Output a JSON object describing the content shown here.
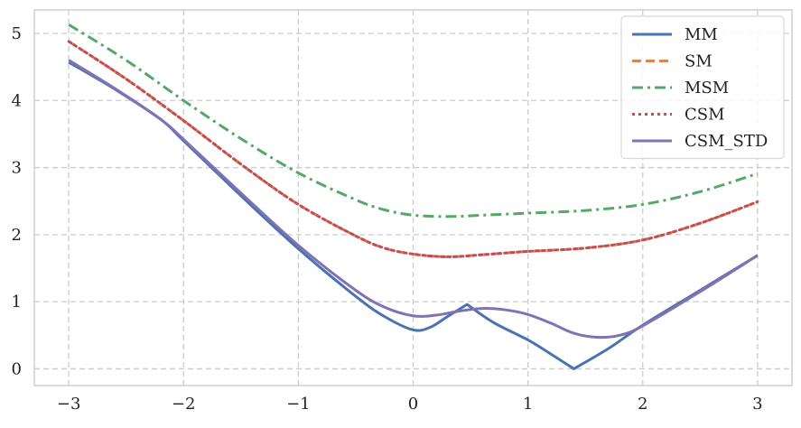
{
  "chart_data": {
    "type": "line",
    "title": "",
    "xlabel": "",
    "ylabel": "",
    "xlim": [
      -3.3,
      3.3
    ],
    "ylim": [
      -0.25,
      5.35
    ],
    "grid": true,
    "legend_position": "top-right",
    "x_ticks": [
      {
        "value": -3,
        "label": "−3"
      },
      {
        "value": -2,
        "label": "−2"
      },
      {
        "value": -1,
        "label": "−1"
      },
      {
        "value": 0,
        "label": "0"
      },
      {
        "value": 1,
        "label": "1"
      },
      {
        "value": 2,
        "label": "2"
      },
      {
        "value": 3,
        "label": "3"
      }
    ],
    "y_ticks": [
      {
        "value": 0,
        "label": "0"
      },
      {
        "value": 1,
        "label": "1"
      },
      {
        "value": 2,
        "label": "2"
      },
      {
        "value": 3,
        "label": "3"
      },
      {
        "value": 4,
        "label": "4"
      },
      {
        "value": 5,
        "label": "5"
      }
    ],
    "series": [
      {
        "name": "MM",
        "color": "#4c72b0",
        "dash": "solid",
        "points": [
          [
            -3,
            4.57
          ],
          [
            -2.6,
            4.17
          ],
          [
            -2.2,
            3.72
          ],
          [
            -2,
            3.4
          ],
          [
            -1.5,
            2.58
          ],
          [
            -1,
            1.79
          ],
          [
            -0.5,
            1.08
          ],
          [
            -0.25,
            0.78
          ],
          [
            0,
            0.58
          ],
          [
            0.15,
            0.62
          ],
          [
            0.3,
            0.78
          ],
          [
            0.47,
            0.96
          ],
          [
            0.7,
            0.69
          ],
          [
            1,
            0.43
          ],
          [
            1.2,
            0.22
          ],
          [
            1.4,
            0.0
          ],
          [
            1.7,
            0.3
          ],
          [
            2,
            0.65
          ],
          [
            2.5,
            1.17
          ],
          [
            3,
            1.69
          ]
        ]
      },
      {
        "name": "SM",
        "color": "#dd8452",
        "dash": "dashed",
        "points": [
          [
            -3,
            4.88
          ],
          [
            -2.5,
            4.32
          ],
          [
            -2,
            3.7
          ],
          [
            -1.5,
            3.05
          ],
          [
            -1,
            2.45
          ],
          [
            -0.5,
            1.98
          ],
          [
            -0.25,
            1.8
          ],
          [
            0,
            1.71
          ],
          [
            0.3,
            1.67
          ],
          [
            0.6,
            1.7
          ],
          [
            1,
            1.75
          ],
          [
            1.5,
            1.8
          ],
          [
            2,
            1.92
          ],
          [
            2.5,
            2.17
          ],
          [
            3,
            2.49
          ]
        ]
      },
      {
        "name": "MSM",
        "color": "#55a868",
        "dash": "dashdot",
        "points": [
          [
            -3,
            5.13
          ],
          [
            -2.5,
            4.6
          ],
          [
            -2,
            4.0
          ],
          [
            -1.5,
            3.43
          ],
          [
            -1,
            2.92
          ],
          [
            -0.5,
            2.52
          ],
          [
            -0.25,
            2.37
          ],
          [
            0,
            2.29
          ],
          [
            0.3,
            2.27
          ],
          [
            0.6,
            2.29
          ],
          [
            1,
            2.32
          ],
          [
            1.5,
            2.36
          ],
          [
            2,
            2.45
          ],
          [
            2.5,
            2.64
          ],
          [
            3,
            2.91
          ]
        ]
      },
      {
        "name": "CSM",
        "color": "#c44e52",
        "dash": "dotted",
        "points": [
          [
            -3,
            4.88
          ],
          [
            -2.5,
            4.32
          ],
          [
            -2,
            3.7
          ],
          [
            -1.5,
            3.05
          ],
          [
            -1,
            2.45
          ],
          [
            -0.5,
            1.98
          ],
          [
            -0.25,
            1.8
          ],
          [
            0,
            1.71
          ],
          [
            0.3,
            1.67
          ],
          [
            0.6,
            1.7
          ],
          [
            1,
            1.75
          ],
          [
            1.5,
            1.8
          ],
          [
            2,
            1.92
          ],
          [
            2.5,
            2.17
          ],
          [
            3,
            2.49
          ]
        ]
      },
      {
        "name": "CSM_STD",
        "color": "#8172b3",
        "dash": "solid",
        "points": [
          [
            -3,
            4.6
          ],
          [
            -2.6,
            4.18
          ],
          [
            -2.2,
            3.72
          ],
          [
            -2,
            3.42
          ],
          [
            -1.5,
            2.62
          ],
          [
            -1,
            1.84
          ],
          [
            -0.5,
            1.17
          ],
          [
            -0.25,
            0.92
          ],
          [
            0,
            0.79
          ],
          [
            0.2,
            0.8
          ],
          [
            0.4,
            0.86
          ],
          [
            0.6,
            0.9
          ],
          [
            0.8,
            0.88
          ],
          [
            1,
            0.81
          ],
          [
            1.2,
            0.68
          ],
          [
            1.4,
            0.53
          ],
          [
            1.6,
            0.47
          ],
          [
            1.8,
            0.5
          ],
          [
            2,
            0.64
          ],
          [
            2.5,
            1.15
          ],
          [
            3,
            1.69
          ]
        ]
      }
    ]
  }
}
